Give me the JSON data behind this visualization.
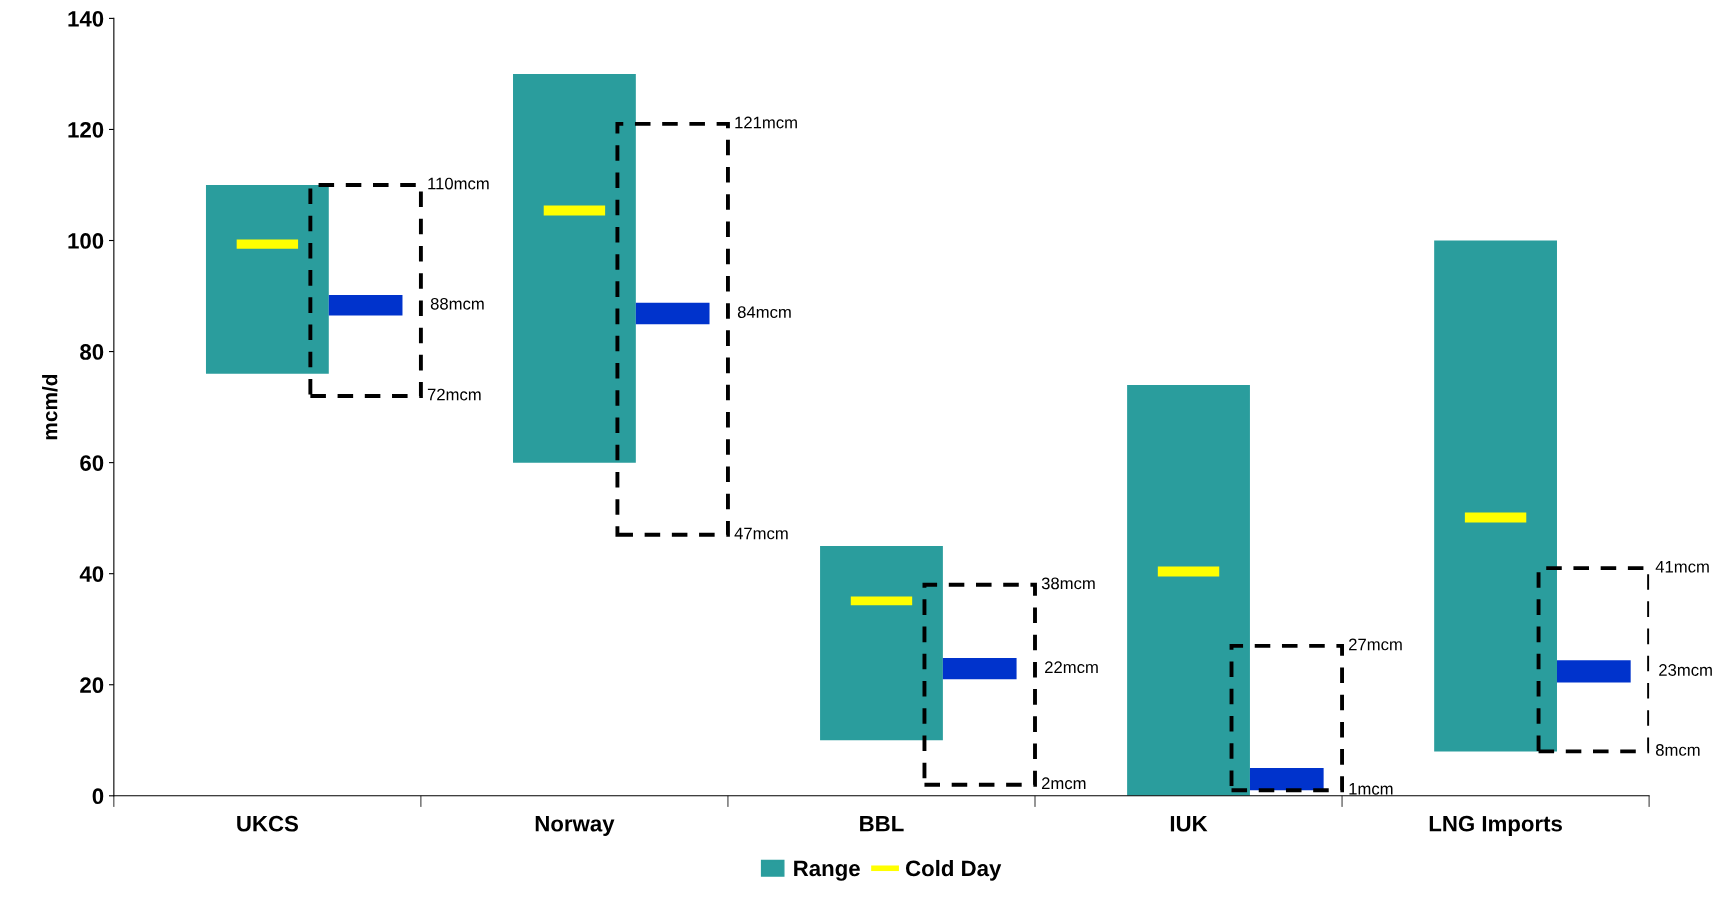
{
  "chart_data": {
    "type": "bar",
    "ylabel": "mcm/d",
    "categories": [
      "UKCS",
      "Norway",
      "BBL",
      "IUK",
      "LNG Imports"
    ],
    "ylim": [
      0,
      140
    ],
    "yticks": [
      0,
      20,
      40,
      60,
      80,
      100,
      120,
      140
    ],
    "grid": false,
    "legend": "bottom",
    "series": [
      {
        "name": "Range",
        "color": "#2a9d9d",
        "base": [
          76,
          60,
          10,
          0,
          8
        ],
        "values": [
          34,
          70,
          35,
          74,
          92
        ]
      },
      {
        "name": "Cold Day",
        "color": "#ffff00",
        "base": [
          98.5,
          104.5,
          34.3,
          39.5,
          49.2
        ],
        "values": [
          1.7,
          1.8,
          1.6,
          1.8,
          1.8
        ]
      },
      {
        "color": "#000000",
        "line_style": "dashed",
        "base": [
          72,
          47,
          2,
          1,
          8
        ],
        "values": [
          38,
          74,
          36,
          26,
          33
        ]
      },
      {
        "color": "#0033cc",
        "base": [
          86.5,
          84.9,
          21.0,
          1.0,
          20.4
        ],
        "values": [
          3.7,
          3.9,
          3.8,
          4.0,
          4.0
        ]
      }
    ],
    "annotations": [
      "110mcm",
      "72mcm",
      "121mcm",
      "47mcm",
      "38mcm",
      "2mcm",
      "27mcm",
      "1mcm",
      "41mcm",
      "8mcm",
      "88mcm",
      "84mcm",
      "22mcm",
      "23mcm"
    ]
  }
}
